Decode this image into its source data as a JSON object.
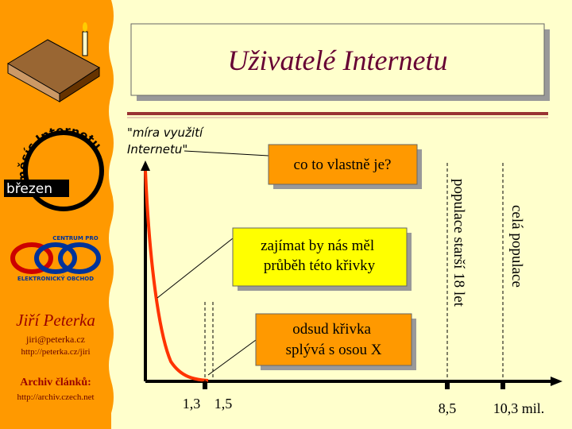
{
  "sidebar": {
    "logo_text": "měsíc Internetu",
    "month": "březen",
    "center_top": "CENTRUM PRO",
    "center_bottom": "ELEKTRONICKÝ OBCHOD",
    "author": "Jiří Peterka",
    "email": "jiri@peterka.cz",
    "homepage": "http://peterka.cz/jiri",
    "archive_label": "Archiv článků:",
    "archive_url": "http://archiv.czech.net"
  },
  "slide": {
    "title": "Uživatelé Internetu",
    "y_axis_label": [
      "\"míra využití",
      "Internetu\""
    ],
    "callouts": [
      [
        "co to vlastně je?"
      ],
      [
        "zajímat by nás měl",
        "průběh této křivky"
      ],
      [
        "odsud křivka",
        "splývá s osou X"
      ]
    ],
    "vertical_labels": [
      "populace starší 18 let",
      "celá populace"
    ],
    "x_labels": [
      "1,3",
      "1,5",
      "8,5",
      "10,3 mil."
    ]
  }
}
